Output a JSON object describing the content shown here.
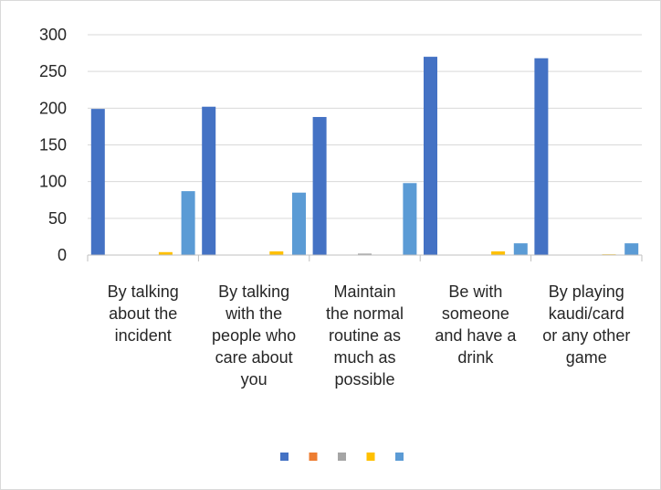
{
  "chart_data": {
    "type": "bar",
    "categories": [
      [
        "By talking",
        "about the",
        "incident"
      ],
      [
        "By talking",
        "with the",
        "people who",
        "care about",
        "you"
      ],
      [
        "Maintain",
        "the normal",
        "routine as",
        "much as",
        "possible"
      ],
      [
        "Be with",
        "someone",
        "and have a",
        "drink"
      ],
      [
        "By playing",
        "kaudi/card",
        "or any other",
        "game"
      ]
    ],
    "series": [
      {
        "color": "#4472C4",
        "values": [
          199,
          202,
          188,
          270,
          268
        ]
      },
      {
        "color": "#ED7D31",
        "values": [
          0,
          0,
          0,
          0,
          0
        ]
      },
      {
        "color": "#A5A5A5",
        "values": [
          0,
          0,
          2,
          0,
          0
        ]
      },
      {
        "color": "#FFC000",
        "values": [
          4,
          5,
          0,
          5,
          1
        ]
      },
      {
        "color": "#5B9BD5",
        "values": [
          87,
          85,
          98,
          16,
          16
        ]
      }
    ],
    "ylim": [
      0,
      300
    ],
    "yticks": [
      0,
      50,
      100,
      150,
      200,
      250,
      300
    ],
    "grid": true,
    "legend_position": "bottom"
  }
}
